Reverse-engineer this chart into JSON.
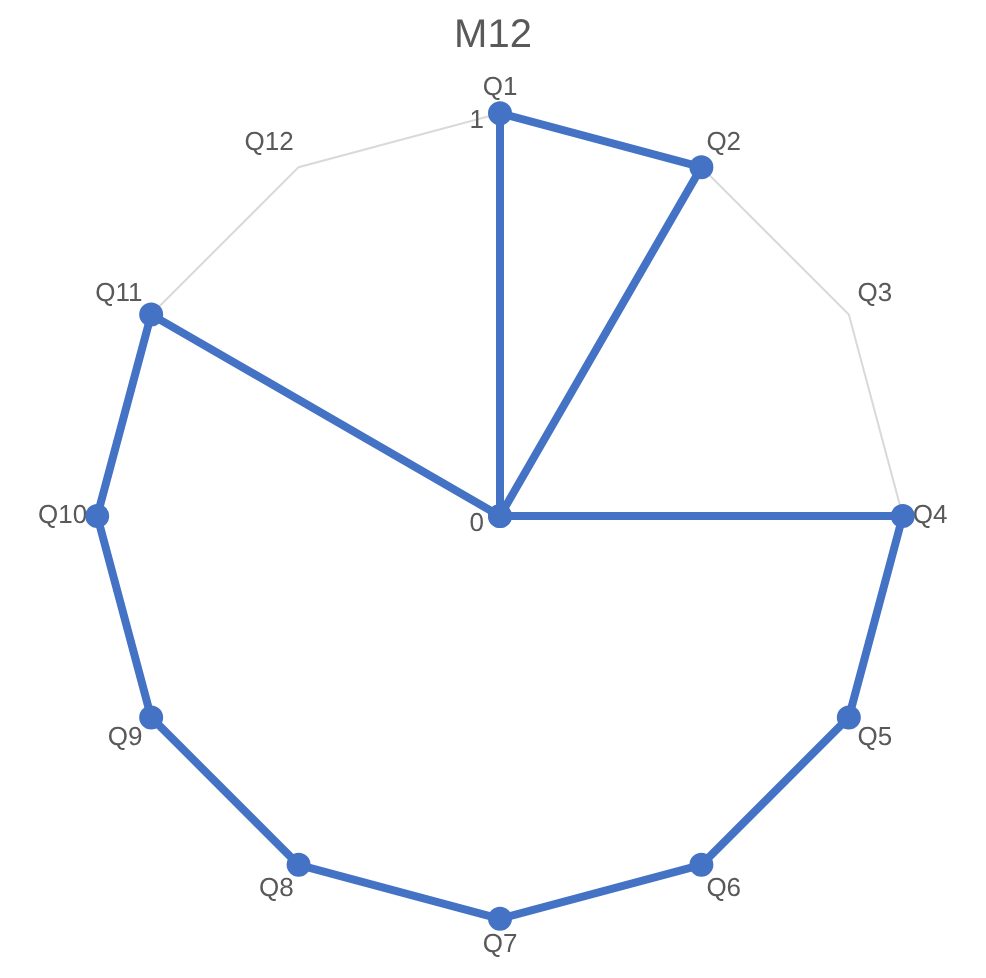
{
  "chart_data": {
    "type": "radar",
    "title": "M12",
    "categories": [
      "Q1",
      "Q2",
      "Q3",
      "Q4",
      "Q5",
      "Q6",
      "Q7",
      "Q8",
      "Q9",
      "Q10",
      "Q11",
      "Q12"
    ],
    "series": [
      {
        "color": "#4472c4",
        "values": [
          1,
          1,
          0,
          1,
          1,
          1,
          1,
          1,
          1,
          1,
          1,
          0
        ]
      }
    ],
    "ylim": [
      0,
      1
    ],
    "yticks": [
      0,
      1
    ],
    "grid": true,
    "legend": false,
    "marker": "circle",
    "line_style": "solid"
  }
}
